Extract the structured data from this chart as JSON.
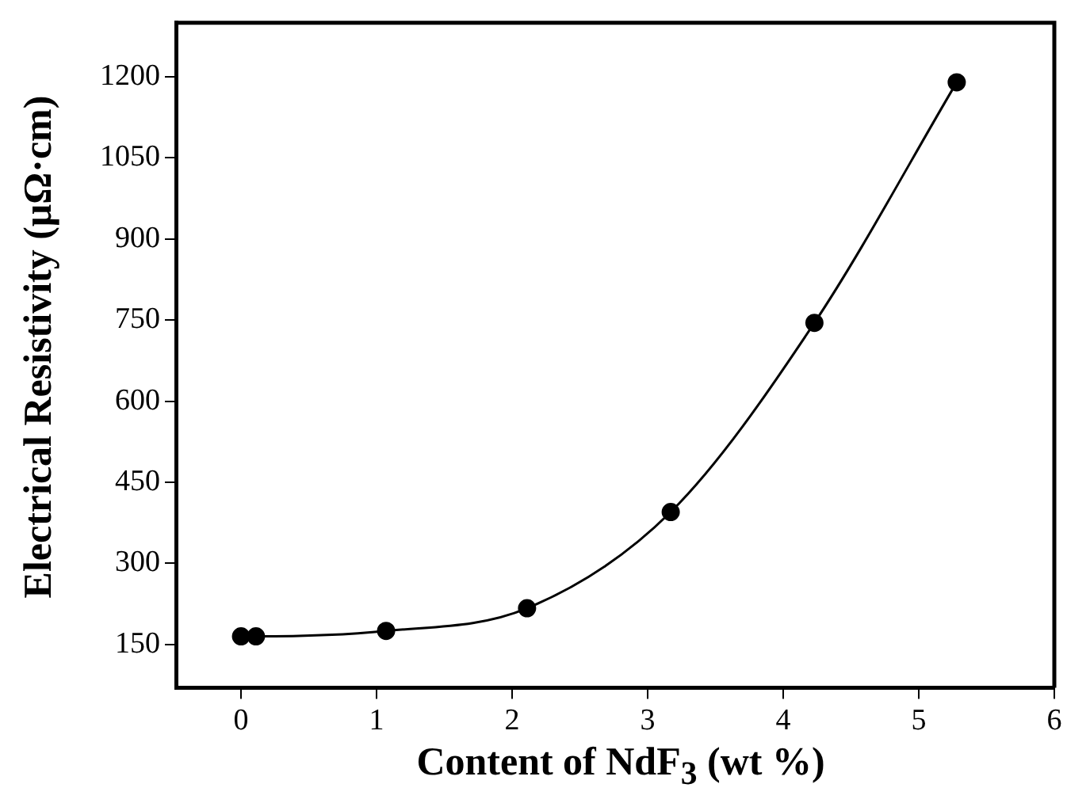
{
  "chart_data": {
    "type": "line",
    "xlabel": "Content of NdF$_{3}$ (wt %)",
    "ylabel": "Electrical Resistivity (μΩ·cm)",
    "x": [
      0,
      0.11,
      1.07,
      2.11,
      3.17,
      4.23,
      5.28
    ],
    "series": [
      {
        "color": "#000000",
        "values": [
          165,
          165,
          175,
          217,
          395,
          745,
          1190
        ]
      }
    ],
    "xlim": [
      -0.48,
      6
    ],
    "xticks": [
      0,
      1,
      2,
      3,
      4,
      5,
      6
    ],
    "ylim": [
      70,
      1300
    ],
    "yticks": [
      150,
      300,
      450,
      600,
      750,
      900,
      1050,
      1200
    ],
    "grid": false,
    "legend": false,
    "marker": "circle",
    "line_style": "solid"
  }
}
